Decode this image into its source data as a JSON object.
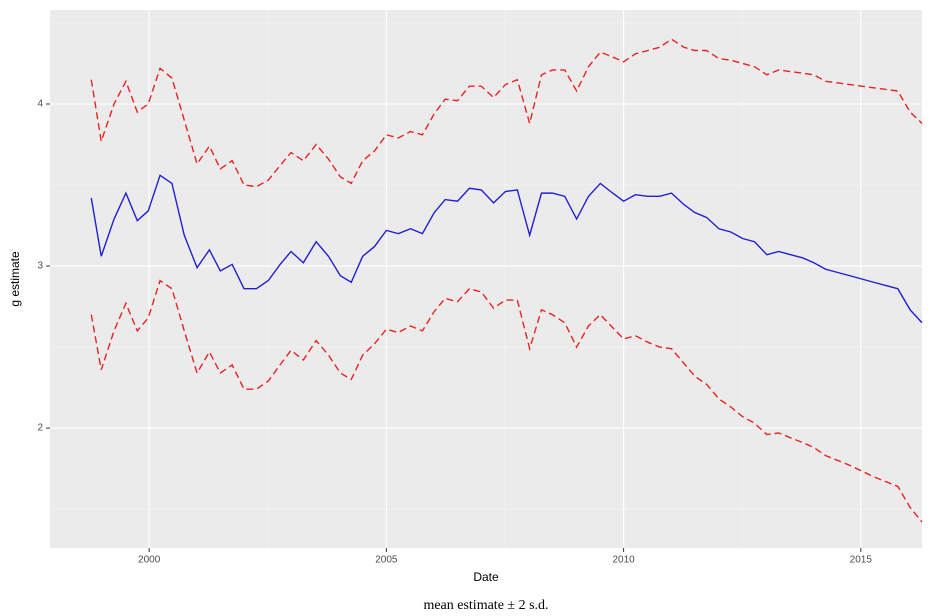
{
  "chart_data": {
    "type": "line",
    "caption": "mean estimate ± 2 s.d.",
    "x_label": "Date",
    "y_label": "g estimate",
    "x": [
      1998.78,
      1998.99,
      1999.26,
      1999.51,
      1999.75,
      1999.98,
      2000.23,
      2000.48,
      2000.74,
      2001.01,
      2001.27,
      2001.5,
      2001.75,
      2002.0,
      2002.26,
      2002.51,
      2002.76,
      2002.99,
      2003.25,
      2003.52,
      2003.78,
      2004.03,
      2004.26,
      2004.5,
      2004.75,
      2005.0,
      2005.25,
      2005.51,
      2005.76,
      2006.01,
      2006.24,
      2006.5,
      2006.75,
      2007.0,
      2007.26,
      2007.51,
      2007.76,
      2008.02,
      2008.27,
      2008.5,
      2008.76,
      2009.01,
      2009.26,
      2009.51,
      2009.77,
      2010.0,
      2010.25,
      2010.51,
      2010.76,
      2011.01,
      2011.27,
      2011.5,
      2011.75,
      2012.01,
      2012.26,
      2012.51,
      2012.76,
      2013.02,
      2013.27,
      2013.52,
      2013.78,
      2014.01,
      2014.26,
      2014.77,
      2015.27,
      2015.78,
      2016.04,
      2016.29
    ],
    "series": [
      {
        "color": "#e8231f",
        "dashed": true,
        "values": [
          4.15,
          3.77,
          4,
          4.14,
          3.95,
          4,
          4.22,
          4.16,
          3.9,
          3.63,
          3.74,
          3.6,
          3.65,
          3.5,
          3.49,
          3.53,
          3.62,
          3.7,
          3.65,
          3.75,
          3.66,
          3.55,
          3.51,
          3.65,
          3.71,
          3.81,
          3.79,
          3.83,
          3.81,
          3.94,
          4.03,
          4.02,
          4.11,
          4.11,
          4.04,
          4.12,
          4.15,
          3.88,
          4.18,
          4.21,
          4.21,
          4.08,
          4.23,
          4.32,
          4.29,
          4.26,
          4.31,
          4.33,
          4.35,
          4.4,
          4.35,
          4.33,
          4.33,
          4.28,
          4.27,
          4.25,
          4.23,
          4.18,
          4.21,
          4.2,
          4.19,
          4.18,
          4.14,
          4.12,
          4.1,
          4.08,
          3.95,
          3.88
        ]
      },
      {
        "color": "#2020d0",
        "dashed": false,
        "values": [
          3.42,
          3.06,
          3.29,
          3.45,
          3.28,
          3.34,
          3.56,
          3.51,
          3.19,
          2.99,
          3.1,
          2.97,
          3.01,
          2.86,
          2.86,
          2.91,
          3.01,
          3.09,
          3.02,
          3.15,
          3.06,
          2.94,
          2.9,
          3.06,
          3.12,
          3.22,
          3.2,
          3.23,
          3.2,
          3.33,
          3.41,
          3.4,
          3.48,
          3.47,
          3.39,
          3.46,
          3.47,
          3.19,
          3.45,
          3.45,
          3.43,
          3.29,
          3.43,
          3.51,
          3.45,
          3.4,
          3.44,
          3.43,
          3.43,
          3.45,
          3.38,
          3.33,
          3.3,
          3.23,
          3.21,
          3.17,
          3.15,
          3.07,
          3.09,
          3.07,
          3.05,
          3.02,
          2.98,
          2.94,
          2.9,
          2.86,
          2.73,
          2.65
        ]
      },
      {
        "color": "#e8231f",
        "dashed": true,
        "values": [
          2.7,
          2.36,
          2.6,
          2.77,
          2.6,
          2.68,
          2.91,
          2.86,
          2.6,
          2.34,
          2.47,
          2.34,
          2.39,
          2.24,
          2.24,
          2.29,
          2.39,
          2.48,
          2.42,
          2.54,
          2.45,
          2.34,
          2.3,
          2.45,
          2.52,
          2.61,
          2.59,
          2.63,
          2.6,
          2.72,
          2.8,
          2.78,
          2.86,
          2.84,
          2.74,
          2.79,
          2.79,
          2.49,
          2.73,
          2.7,
          2.65,
          2.5,
          2.63,
          2.7,
          2.62,
          2.55,
          2.57,
          2.53,
          2.5,
          2.49,
          2.4,
          2.32,
          2.27,
          2.18,
          2.13,
          2.07,
          2.03,
          1.96,
          1.97,
          1.94,
          1.91,
          1.88,
          1.83,
          1.77,
          1.7,
          1.64,
          1.51,
          1.42
        ]
      }
    ],
    "xlim": [
      1997.91,
      2016.29
    ],
    "ylim": [
      1.26,
      4.58
    ],
    "xticks": [
      2000,
      2005,
      2010,
      2015
    ],
    "yticks": [
      2,
      3,
      4
    ],
    "x_minor_ticks": [
      1997.5,
      2002.5,
      2007.5,
      2012.5
    ],
    "y_minor_ticks": [
      1.5,
      2.5,
      3.5,
      4.5
    ],
    "grid": true,
    "panel_color": "#ebebeb"
  }
}
